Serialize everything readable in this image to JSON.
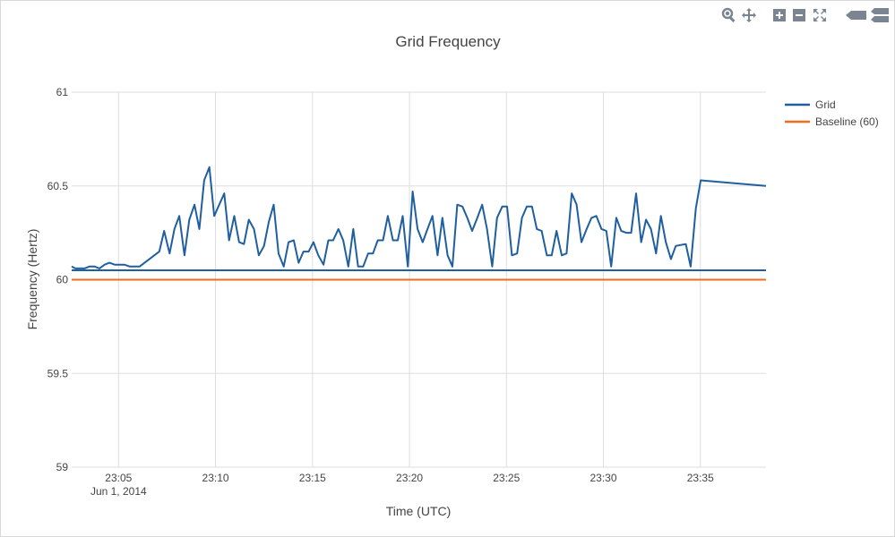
{
  "toolbar": {
    "icons": [
      "zoom-icon",
      "pan-icon",
      "zoom-in-icon",
      "zoom-out-icon",
      "autoscale-icon",
      "hover-closest-icon",
      "hover-compare-icon"
    ]
  },
  "colors": {
    "grid_series": "#1f5fa0",
    "baseline_series": "#ee6b1f",
    "gridline": "#dddddd",
    "icon": "#7a8591"
  },
  "chart_data": {
    "type": "line",
    "title": "Grid Frequency",
    "xlabel": "Time (UTC)",
    "ylabel": "Frequency (Hertz)",
    "x_is_time": true,
    "xlim": [
      "23:02:35",
      "23:38:23"
    ],
    "ylim": [
      59,
      61
    ],
    "x_ticks": [
      "23:05",
      "23:10",
      "23:15",
      "23:20",
      "23:25",
      "23:30",
      "23:35"
    ],
    "x_tick_sublabel": {
      "tick": "23:05",
      "text": "Jun 1, 2014"
    },
    "y_ticks": [
      59,
      59.5,
      60,
      60.5,
      61
    ],
    "y_tick_labels": [
      "59",
      "59.5",
      "60",
      "60.5",
      "61"
    ],
    "grid": true,
    "legend_position": "top-right",
    "series": [
      {
        "name": "Grid",
        "color": "#1f5fa0",
        "points": [
          [
            "23:02:35",
            60.07
          ],
          [
            "23:02:46",
            60.06
          ],
          [
            "23:03:15",
            60.06
          ],
          [
            "23:03:30",
            60.07
          ],
          [
            "23:03:46",
            60.07
          ],
          [
            "23:04:01",
            60.06
          ],
          [
            "23:04:17",
            60.08
          ],
          [
            "23:04:32",
            60.09
          ],
          [
            "23:04:48",
            60.08
          ],
          [
            "23:05:18",
            60.08
          ],
          [
            "23:05:35",
            60.07
          ],
          [
            "23:06:05",
            60.07
          ],
          [
            "23:07:06",
            60.15
          ],
          [
            "23:07:21",
            60.26
          ],
          [
            "23:07:38",
            60.14
          ],
          [
            "23:07:53",
            60.27
          ],
          [
            "23:08:08",
            60.34
          ],
          [
            "23:08:24",
            60.13
          ],
          [
            "23:08:39",
            60.32
          ],
          [
            "23:08:55",
            60.4
          ],
          [
            "23:09:10",
            60.27
          ],
          [
            "23:09:25",
            60.53
          ],
          [
            "23:09:41",
            60.6
          ],
          [
            "23:09:56",
            60.34
          ],
          [
            "23:10:27",
            60.46
          ],
          [
            "23:10:42",
            60.21
          ],
          [
            "23:10:58",
            60.34
          ],
          [
            "23:11:13",
            60.2
          ],
          [
            "23:11:28",
            60.19
          ],
          [
            "23:11:43",
            60.32
          ],
          [
            "23:11:59",
            60.27
          ],
          [
            "23:12:14",
            60.13
          ],
          [
            "23:12:30",
            60.18
          ],
          [
            "23:12:45",
            60.31
          ],
          [
            "23:13:00",
            60.4
          ],
          [
            "23:13:15",
            60.14
          ],
          [
            "23:13:31",
            60.07
          ],
          [
            "23:13:46",
            60.2
          ],
          [
            "23:14:02",
            60.21
          ],
          [
            "23:14:17",
            60.09
          ],
          [
            "23:14:32",
            60.15
          ],
          [
            "23:14:48",
            60.15
          ],
          [
            "23:15:03",
            60.2
          ],
          [
            "23:15:18",
            60.13
          ],
          [
            "23:15:34",
            60.08
          ],
          [
            "23:15:49",
            60.21
          ],
          [
            "23:16:04",
            60.21
          ],
          [
            "23:16:20",
            60.27
          ],
          [
            "23:16:35",
            60.21
          ],
          [
            "23:16:51",
            60.07
          ],
          [
            "23:17:06",
            60.27
          ],
          [
            "23:17:21",
            60.07
          ],
          [
            "23:17:37",
            60.07
          ],
          [
            "23:17:52",
            60.14
          ],
          [
            "23:18:07",
            60.14
          ],
          [
            "23:18:22",
            60.21
          ],
          [
            "23:18:38",
            60.21
          ],
          [
            "23:18:53",
            60.34
          ],
          [
            "23:19:09",
            60.21
          ],
          [
            "23:19:24",
            60.21
          ],
          [
            "23:19:39",
            60.34
          ],
          [
            "23:19:55",
            60.07
          ],
          [
            "23:20:10",
            60.47
          ],
          [
            "23:20:25",
            60.27
          ],
          [
            "23:20:41",
            60.2
          ],
          [
            "23:20:56",
            60.27
          ],
          [
            "23:21:11",
            60.34
          ],
          [
            "23:21:27",
            60.13
          ],
          [
            "23:21:42",
            60.33
          ],
          [
            "23:21:58",
            60.13
          ],
          [
            "23:22:13",
            60.07
          ],
          [
            "23:22:28",
            60.4
          ],
          [
            "23:22:44",
            60.39
          ],
          [
            "23:22:59",
            60.33
          ],
          [
            "23:23:14",
            60.26
          ],
          [
            "23:23:30",
            60.33
          ],
          [
            "23:23:45",
            60.4
          ],
          [
            "23:24:00",
            60.27
          ],
          [
            "23:24:16",
            60.07
          ],
          [
            "23:24:31",
            60.33
          ],
          [
            "23:24:47",
            60.39
          ],
          [
            "23:25:02",
            60.39
          ],
          [
            "23:25:17",
            60.13
          ],
          [
            "23:25:33",
            60.14
          ],
          [
            "23:25:48",
            60.33
          ],
          [
            "23:26:03",
            60.39
          ],
          [
            "23:26:19",
            60.39
          ],
          [
            "23:26:34",
            60.27
          ],
          [
            "23:26:49",
            60.26
          ],
          [
            "23:27:05",
            60.13
          ],
          [
            "23:27:20",
            60.13
          ],
          [
            "23:27:35",
            60.26
          ],
          [
            "23:27:51",
            60.13
          ],
          [
            "23:28:06",
            60.14
          ],
          [
            "23:28:22",
            60.46
          ],
          [
            "23:28:37",
            60.4
          ],
          [
            "23:28:52",
            60.2
          ],
          [
            "23:29:08",
            60.27
          ],
          [
            "23:29:23",
            60.33
          ],
          [
            "23:29:38",
            60.34
          ],
          [
            "23:29:54",
            60.27
          ],
          [
            "23:30:09",
            60.26
          ],
          [
            "23:30:24",
            60.07
          ],
          [
            "23:30:40",
            60.33
          ],
          [
            "23:30:55",
            60.26
          ],
          [
            "23:31:11",
            60.25
          ],
          [
            "23:31:26",
            60.25
          ],
          [
            "23:31:41",
            60.46
          ],
          [
            "23:31:57",
            60.2
          ],
          [
            "23:32:12",
            60.32
          ],
          [
            "23:32:27",
            60.27
          ],
          [
            "23:32:43",
            60.14
          ],
          [
            "23:32:58",
            60.34
          ],
          [
            "23:33:13",
            60.2
          ],
          [
            "23:33:29",
            60.11
          ],
          [
            "23:33:44",
            60.18
          ],
          [
            "23:34:15",
            60.19
          ],
          [
            "23:34:30",
            60.07
          ],
          [
            "23:34:46",
            60.38
          ],
          [
            "23:35:01",
            60.53
          ],
          [
            "23:38:23",
            60.5
          ]
        ]
      },
      {
        "name": "Baseline (60)",
        "color": "#ee6b1f",
        "points": [
          [
            "23:02:35",
            60.0
          ],
          [
            "23:38:23",
            60.0
          ]
        ]
      }
    ]
  }
}
